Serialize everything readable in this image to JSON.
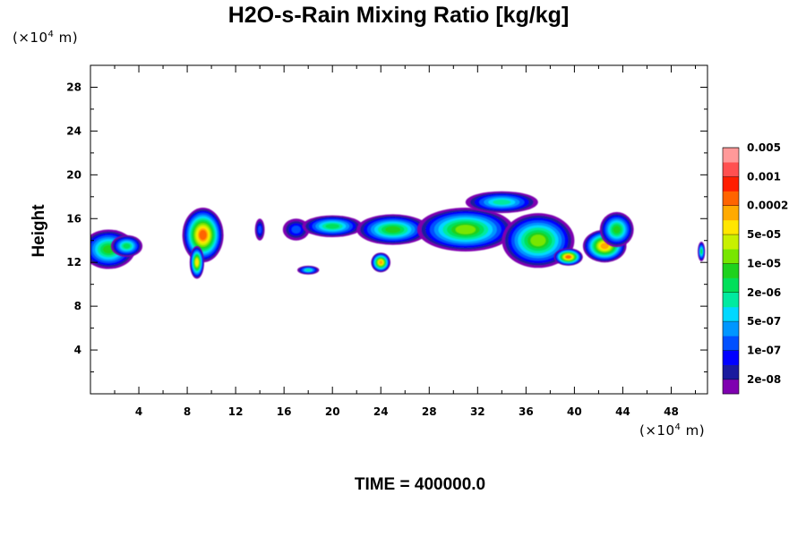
{
  "chart_data": {
    "type": "heatmap",
    "title": "H2O-s-Rain Mixing Ratio [kg/kg]",
    "ylabel": "Height",
    "xlabel": "",
    "x_unit": "(×10",
    "x_unit_exp": "4",
    "x_unit_suffix": " m)",
    "y_unit": "(×10",
    "y_unit_exp": "4",
    "y_unit_suffix": " m)",
    "xlim": [
      0,
      51
    ],
    "ylim": [
      0,
      30
    ],
    "x_ticks": [
      4,
      8,
      12,
      16,
      20,
      24,
      28,
      32,
      36,
      40,
      44,
      48
    ],
    "x_tick_labels": [
      "4",
      "8",
      "12",
      "16",
      "20",
      "24",
      "28",
      "32",
      "36",
      "40",
      "44",
      "48"
    ],
    "y_ticks": [
      4,
      8,
      12,
      16,
      20,
      24,
      28
    ],
    "y_tick_labels": [
      "4",
      "8",
      "12",
      "16",
      "20",
      "24",
      "28"
    ],
    "colorbar": {
      "colors": [
        "#7f00b0",
        "#1a1a9e",
        "#0000ff",
        "#0050ff",
        "#0096ff",
        "#00d8ff",
        "#00eaa0",
        "#00e05a",
        "#1ed21e",
        "#78e600",
        "#c8f000",
        "#ffe600",
        "#ffaa00",
        "#ff6400",
        "#ff1e00",
        "#ff5050",
        "#ff9999"
      ],
      "labels": [
        "2e-08",
        "1e-07",
        "5e-07",
        "2e-06",
        "1e-05",
        "5e-05",
        "0.0002",
        "0.001",
        "0.005"
      ]
    },
    "cells": [
      {
        "x": 1.5,
        "y": 13.2,
        "rx": 2.2,
        "ry": 1.8,
        "level": 8
      },
      {
        "x": 3.0,
        "y": 13.5,
        "rx": 1.3,
        "ry": 1.0,
        "level": 7
      },
      {
        "x": 9.3,
        "y": 14.5,
        "rx": 1.7,
        "ry": 2.5,
        "level": 13
      },
      {
        "x": 8.8,
        "y": 12.0,
        "rx": 0.6,
        "ry": 1.5,
        "level": 11
      },
      {
        "x": 14.0,
        "y": 15.0,
        "rx": 0.4,
        "ry": 1.0,
        "level": 3
      },
      {
        "x": 17.0,
        "y": 15.0,
        "rx": 1.1,
        "ry": 1.0,
        "level": 3
      },
      {
        "x": 20.0,
        "y": 15.3,
        "rx": 2.5,
        "ry": 1.0,
        "level": 7
      },
      {
        "x": 24.0,
        "y": 12.0,
        "rx": 0.8,
        "ry": 0.9,
        "level": 12
      },
      {
        "x": 25.0,
        "y": 15.0,
        "rx": 3.0,
        "ry": 1.4,
        "level": 8
      },
      {
        "x": 31.0,
        "y": 15.0,
        "rx": 4.0,
        "ry": 2.0,
        "level": 9
      },
      {
        "x": 34.0,
        "y": 17.5,
        "rx": 3.0,
        "ry": 1.0,
        "level": 6
      },
      {
        "x": 37.0,
        "y": 14.0,
        "rx": 3.0,
        "ry": 2.5,
        "level": 9
      },
      {
        "x": 39.5,
        "y": 12.5,
        "rx": 1.2,
        "ry": 0.8,
        "level": 13
      },
      {
        "x": 42.5,
        "y": 13.5,
        "rx": 1.8,
        "ry": 1.5,
        "level": 12
      },
      {
        "x": 43.5,
        "y": 15.0,
        "rx": 1.4,
        "ry": 1.6,
        "level": 8
      },
      {
        "x": 50.5,
        "y": 13.0,
        "rx": 0.3,
        "ry": 0.9,
        "level": 7
      },
      {
        "x": 18.0,
        "y": 11.3,
        "rx": 0.9,
        "ry": 0.4,
        "level": 6
      }
    ]
  },
  "footer": {
    "time_label": "TIME = 400000.0"
  }
}
